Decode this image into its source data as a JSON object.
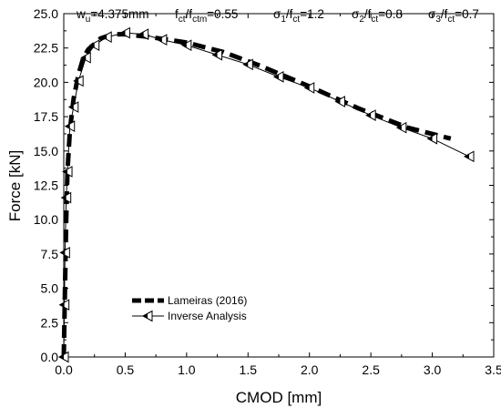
{
  "chart_data": {
    "type": "line",
    "xlabel": "CMOD [mm]",
    "ylabel": "Force [kN]",
    "xlim": [
      0,
      3.5
    ],
    "ylim": [
      0,
      25
    ],
    "xticks": [
      0.0,
      0.5,
      1.0,
      1.5,
      2.0,
      2.5,
      3.0,
      3.5
    ],
    "xtick_labels": [
      "0.0",
      "0.5",
      "1.0",
      "1.5",
      "2.0",
      "2.5",
      "3.0",
      "3.5"
    ],
    "yticks": [
      0,
      2.5,
      5,
      7.5,
      10,
      12.5,
      15,
      17.5,
      20,
      22.5,
      25
    ],
    "ytick_labels": [
      "0.0",
      "2.5",
      "5.0",
      "7.5",
      "10.0",
      "12.5",
      "15.0",
      "17.5",
      "20.0",
      "22.5",
      "25.0"
    ],
    "grid": false,
    "legend_position": "bottom-left",
    "annotations": [
      {
        "base": "w",
        "sub": "u",
        "rest": "=4.375mm"
      },
      {
        "base": "f",
        "sub": "ct",
        "mid": "/f",
        "sub2": "ctm",
        "rest": "=0.55"
      },
      {
        "base": "σ",
        "sub": "1",
        "mid": "/f",
        "sub2": "ct",
        "rest": "=1.2"
      },
      {
        "base": "σ",
        "sub": "2",
        "mid": "/f",
        "sub2": "ct",
        "rest": "=0.8"
      },
      {
        "base": "σ",
        "sub": "3",
        "mid": "/f",
        "sub2": "ct",
        "rest": "=0.7"
      }
    ],
    "series": [
      {
        "name": "Lameiras (2016)",
        "style": "thick-dashed",
        "color": "#000000",
        "x": [
          0.0,
          0.01,
          0.02,
          0.03,
          0.05,
          0.08,
          0.12,
          0.16,
          0.2,
          0.3,
          0.4,
          0.5,
          0.7,
          1.0,
          1.3,
          1.6,
          2.0,
          2.4,
          2.8,
          3.15
        ],
        "y": [
          0.0,
          5.0,
          10.0,
          13.5,
          16.5,
          18.8,
          20.6,
          21.8,
          22.4,
          23.2,
          23.5,
          23.5,
          23.3,
          22.9,
          22.2,
          21.2,
          19.7,
          18.1,
          16.7,
          15.9
        ]
      },
      {
        "name": "Inverse Analysis",
        "style": "thin-line-triangle-markers",
        "color": "#000000",
        "x": [
          0.0,
          0.005,
          0.01,
          0.02,
          0.03,
          0.05,
          0.08,
          0.12,
          0.18,
          0.25,
          0.35,
          0.5,
          0.65,
          0.8,
          1.0,
          1.25,
          1.5,
          1.75,
          2.0,
          2.25,
          2.5,
          2.75,
          3.0,
          3.3
        ],
        "y": [
          0.0,
          3.8,
          7.6,
          11.6,
          13.5,
          16.8,
          18.2,
          20.1,
          21.8,
          22.7,
          23.3,
          23.6,
          23.5,
          23.1,
          22.7,
          22.0,
          21.3,
          20.4,
          19.6,
          18.6,
          17.6,
          16.7,
          15.9,
          14.6
        ]
      }
    ]
  }
}
